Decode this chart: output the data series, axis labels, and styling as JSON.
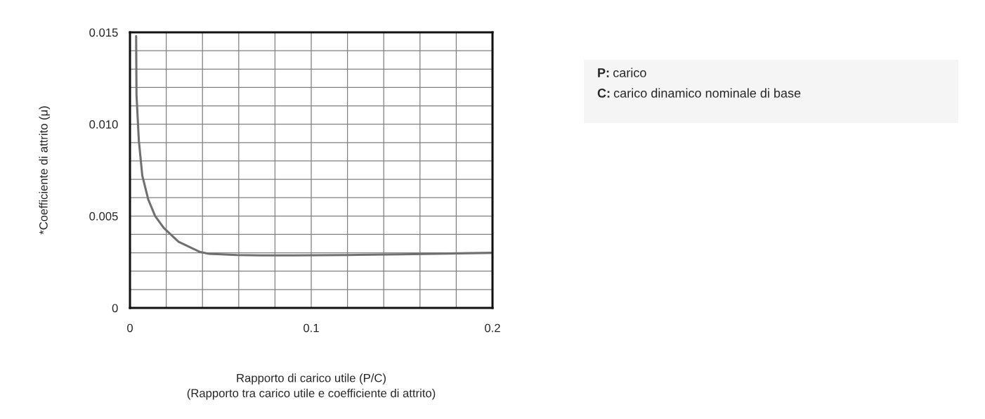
{
  "chart_data": {
    "type": "line",
    "xlabel": "Rapporto di carico utile (P/C)\n(Rapporto tra carico utile e coefficiente di attrito)",
    "ylabel": "*Coefficiente di attrito (μ)",
    "series": [
      {
        "color": "#707070",
        "x": [
          0.0034,
          0.0036,
          0.0049,
          0.0068,
          0.0101,
          0.0139,
          0.0187,
          0.0268,
          0.0388,
          0.0436,
          0.059,
          0.072,
          0.09,
          0.12,
          0.15,
          0.175,
          0.2
        ],
        "values": [
          0.0148,
          0.0116,
          0.0091,
          0.0072,
          0.0059,
          0.005,
          0.00435,
          0.0036,
          0.00304,
          0.00295,
          0.00288,
          0.00286,
          0.00286,
          0.00288,
          0.00292,
          0.00296,
          0.003
        ]
      }
    ],
    "xlim": [
      0,
      0.2
    ],
    "xticks": [
      0,
      {
        "value": 0.02,
        "label": null
      },
      {
        "value": 0.04,
        "label": null
      },
      {
        "value": 0.06,
        "label": null
      },
      {
        "value": 0.08,
        "label": null
      },
      0.1,
      {
        "value": 0.12,
        "label": null
      },
      {
        "value": 0.14,
        "label": null
      },
      {
        "value": 0.16,
        "label": null
      },
      {
        "value": 0.18,
        "label": null
      },
      0.2
    ],
    "ylim": [
      0,
      0.015
    ],
    "yticks": [
      0,
      {
        "value": 0.001,
        "label": null
      },
      {
        "value": 0.002,
        "label": null
      },
      {
        "value": 0.003,
        "label": null
      },
      {
        "value": 0.004,
        "label": null
      },
      0.005,
      {
        "value": 0.006,
        "label": null
      },
      {
        "value": 0.007,
        "label": null
      },
      {
        "value": 0.008,
        "label": null
      },
      {
        "value": 0.009,
        "label": null
      },
      {
        "value": 0.01,
        "label": "0.010"
      },
      {
        "value": 0.011,
        "label": null
      },
      {
        "value": 0.012,
        "label": null
      },
      {
        "value": 0.013,
        "label": null
      },
      {
        "value": 0.014,
        "label": null
      },
      0.015
    ],
    "grid": true,
    "marker": "none",
    "line_style": "solid",
    "annotations": [
      "P: carico",
      "C: carico dinamico nominale di base"
    ]
  }
}
